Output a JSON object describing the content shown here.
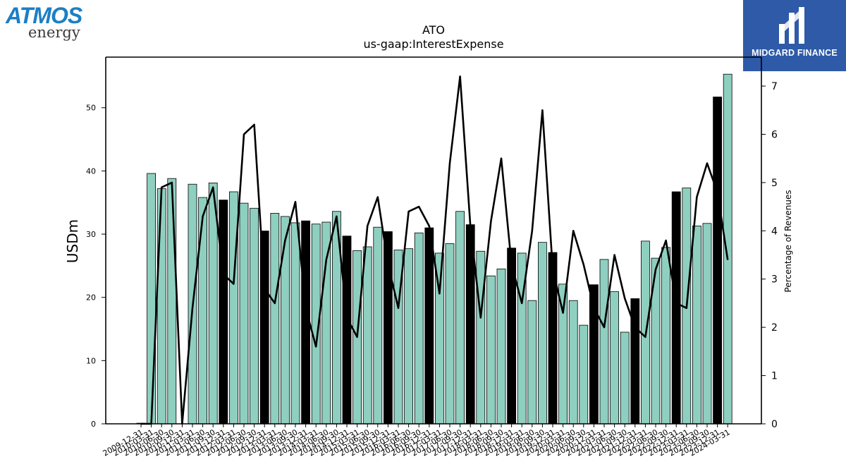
{
  "logos": {
    "left": {
      "primary": "ATMOS",
      "secondary": "energy"
    },
    "right": {
      "text": "MIDGARD FINANCE",
      "icon": "midgard-finance-logo-icon"
    }
  },
  "chart_data": {
    "type": "bar",
    "title": "ATO",
    "subtitle": "us-gaap:InterestExpense",
    "ylabel": "USDm",
    "y2label": "Percentage of Revenues",
    "ylim": [
      0,
      58
    ],
    "y2lim": [
      0,
      7.6
    ],
    "yticks": [
      0,
      10,
      20,
      30,
      40,
      50
    ],
    "y2ticks": [
      0,
      1,
      2,
      3,
      4,
      5,
      6,
      7
    ],
    "colors": {
      "quarter": "#8ecfc0",
      "annual": "#000000",
      "line": "#000000"
    },
    "categories": [
      "2009-12-31",
      "2010-03-31",
      "2010-06-30",
      "2010-09-30",
      "2010-12-31",
      "2011-03-31",
      "2011-06-30",
      "2011-09-30",
      "2011-12-31",
      "2012-03-31",
      "2012-06-30",
      "2012-09-30",
      "2012-12-31",
      "2013-03-31",
      "2013-06-30",
      "2013-09-30",
      "2013-12-31",
      "2014-03-31",
      "2014-06-30",
      "2014-09-30",
      "2014-12-31",
      "2015-03-31",
      "2015-06-30",
      "2015-09-30",
      "2015-12-31",
      "2016-03-31",
      "2016-06-30",
      "2016-09-30",
      "2016-12-31",
      "2017-03-31",
      "2017-06-30",
      "2017-09-30",
      "2017-12-31",
      "2018-03-31",
      "2018-06-30",
      "2018-09-30",
      "2018-12-31",
      "2019-03-31",
      "2019-06-30",
      "2019-09-30",
      "2019-12-31",
      "2020-03-31",
      "2020-06-30",
      "2020-09-30",
      "2020-12-31",
      "2021-03-31",
      "2021-06-30",
      "2021-09-30",
      "2021-12-31",
      "2022-03-31",
      "2022-06-30",
      "2022-09-30",
      "2022-12-31",
      "2023-03-31",
      "2023-06-30",
      "2023-09-30",
      "2023-12-31",
      "2024-03-31"
    ],
    "series": [
      {
        "values": [
          0.1,
          39.6,
          37.2,
          38.8,
          0,
          37.9,
          35.8,
          38.1,
          35.4,
          36.7,
          34.9,
          34.1,
          30.5,
          33.3,
          32.8,
          31.8,
          32.1,
          31.6,
          31.9,
          33.6,
          29.7,
          27.4,
          28.0,
          31.1,
          30.4,
          27.5,
          27.7,
          30.2,
          31.0,
          27.0,
          28.5,
          33.6,
          31.5,
          27.3,
          23.4,
          24.5,
          27.8,
          27.0,
          19.5,
          28.7,
          27.1,
          22.1,
          19.5,
          15.6,
          22.0,
          26.0,
          20.9,
          14.5,
          19.8,
          28.9,
          26.2,
          27.9,
          36.7,
          37.3,
          31.3,
          31.7,
          51.7,
          55.3
        ],
        "annual": [
          false,
          false,
          false,
          false,
          false,
          false,
          false,
          false,
          true,
          false,
          false,
          false,
          true,
          false,
          false,
          false,
          true,
          false,
          false,
          false,
          true,
          false,
          false,
          false,
          true,
          false,
          false,
          false,
          true,
          false,
          false,
          false,
          true,
          false,
          false,
          false,
          true,
          false,
          false,
          false,
          true,
          false,
          false,
          false,
          true,
          false,
          false,
          false,
          true,
          false,
          false,
          false,
          true,
          false,
          false,
          false,
          true,
          false
        ]
      },
      {
        "axis": "right",
        "values": [
          0,
          0,
          4.9,
          5.0,
          0,
          2.4,
          4.3,
          4.9,
          3.1,
          2.9,
          6.0,
          6.2,
          2.8,
          2.5,
          3.8,
          4.6,
          2.4,
          1.6,
          3.4,
          4.3,
          2.2,
          1.8,
          4.1,
          4.7,
          3.3,
          2.4,
          4.4,
          4.5,
          4.1,
          2.7,
          5.4,
          7.2,
          4.1,
          2.2,
          4.2,
          5.5,
          3.3,
          2.5,
          4.0,
          6.5,
          3.2,
          2.3,
          4.0,
          3.3,
          2.4,
          2.0,
          3.5,
          2.6,
          2.0,
          1.8,
          3.2,
          3.8,
          2.5,
          2.4,
          4.7,
          5.4,
          4.8,
          3.4
        ]
      }
    ]
  }
}
